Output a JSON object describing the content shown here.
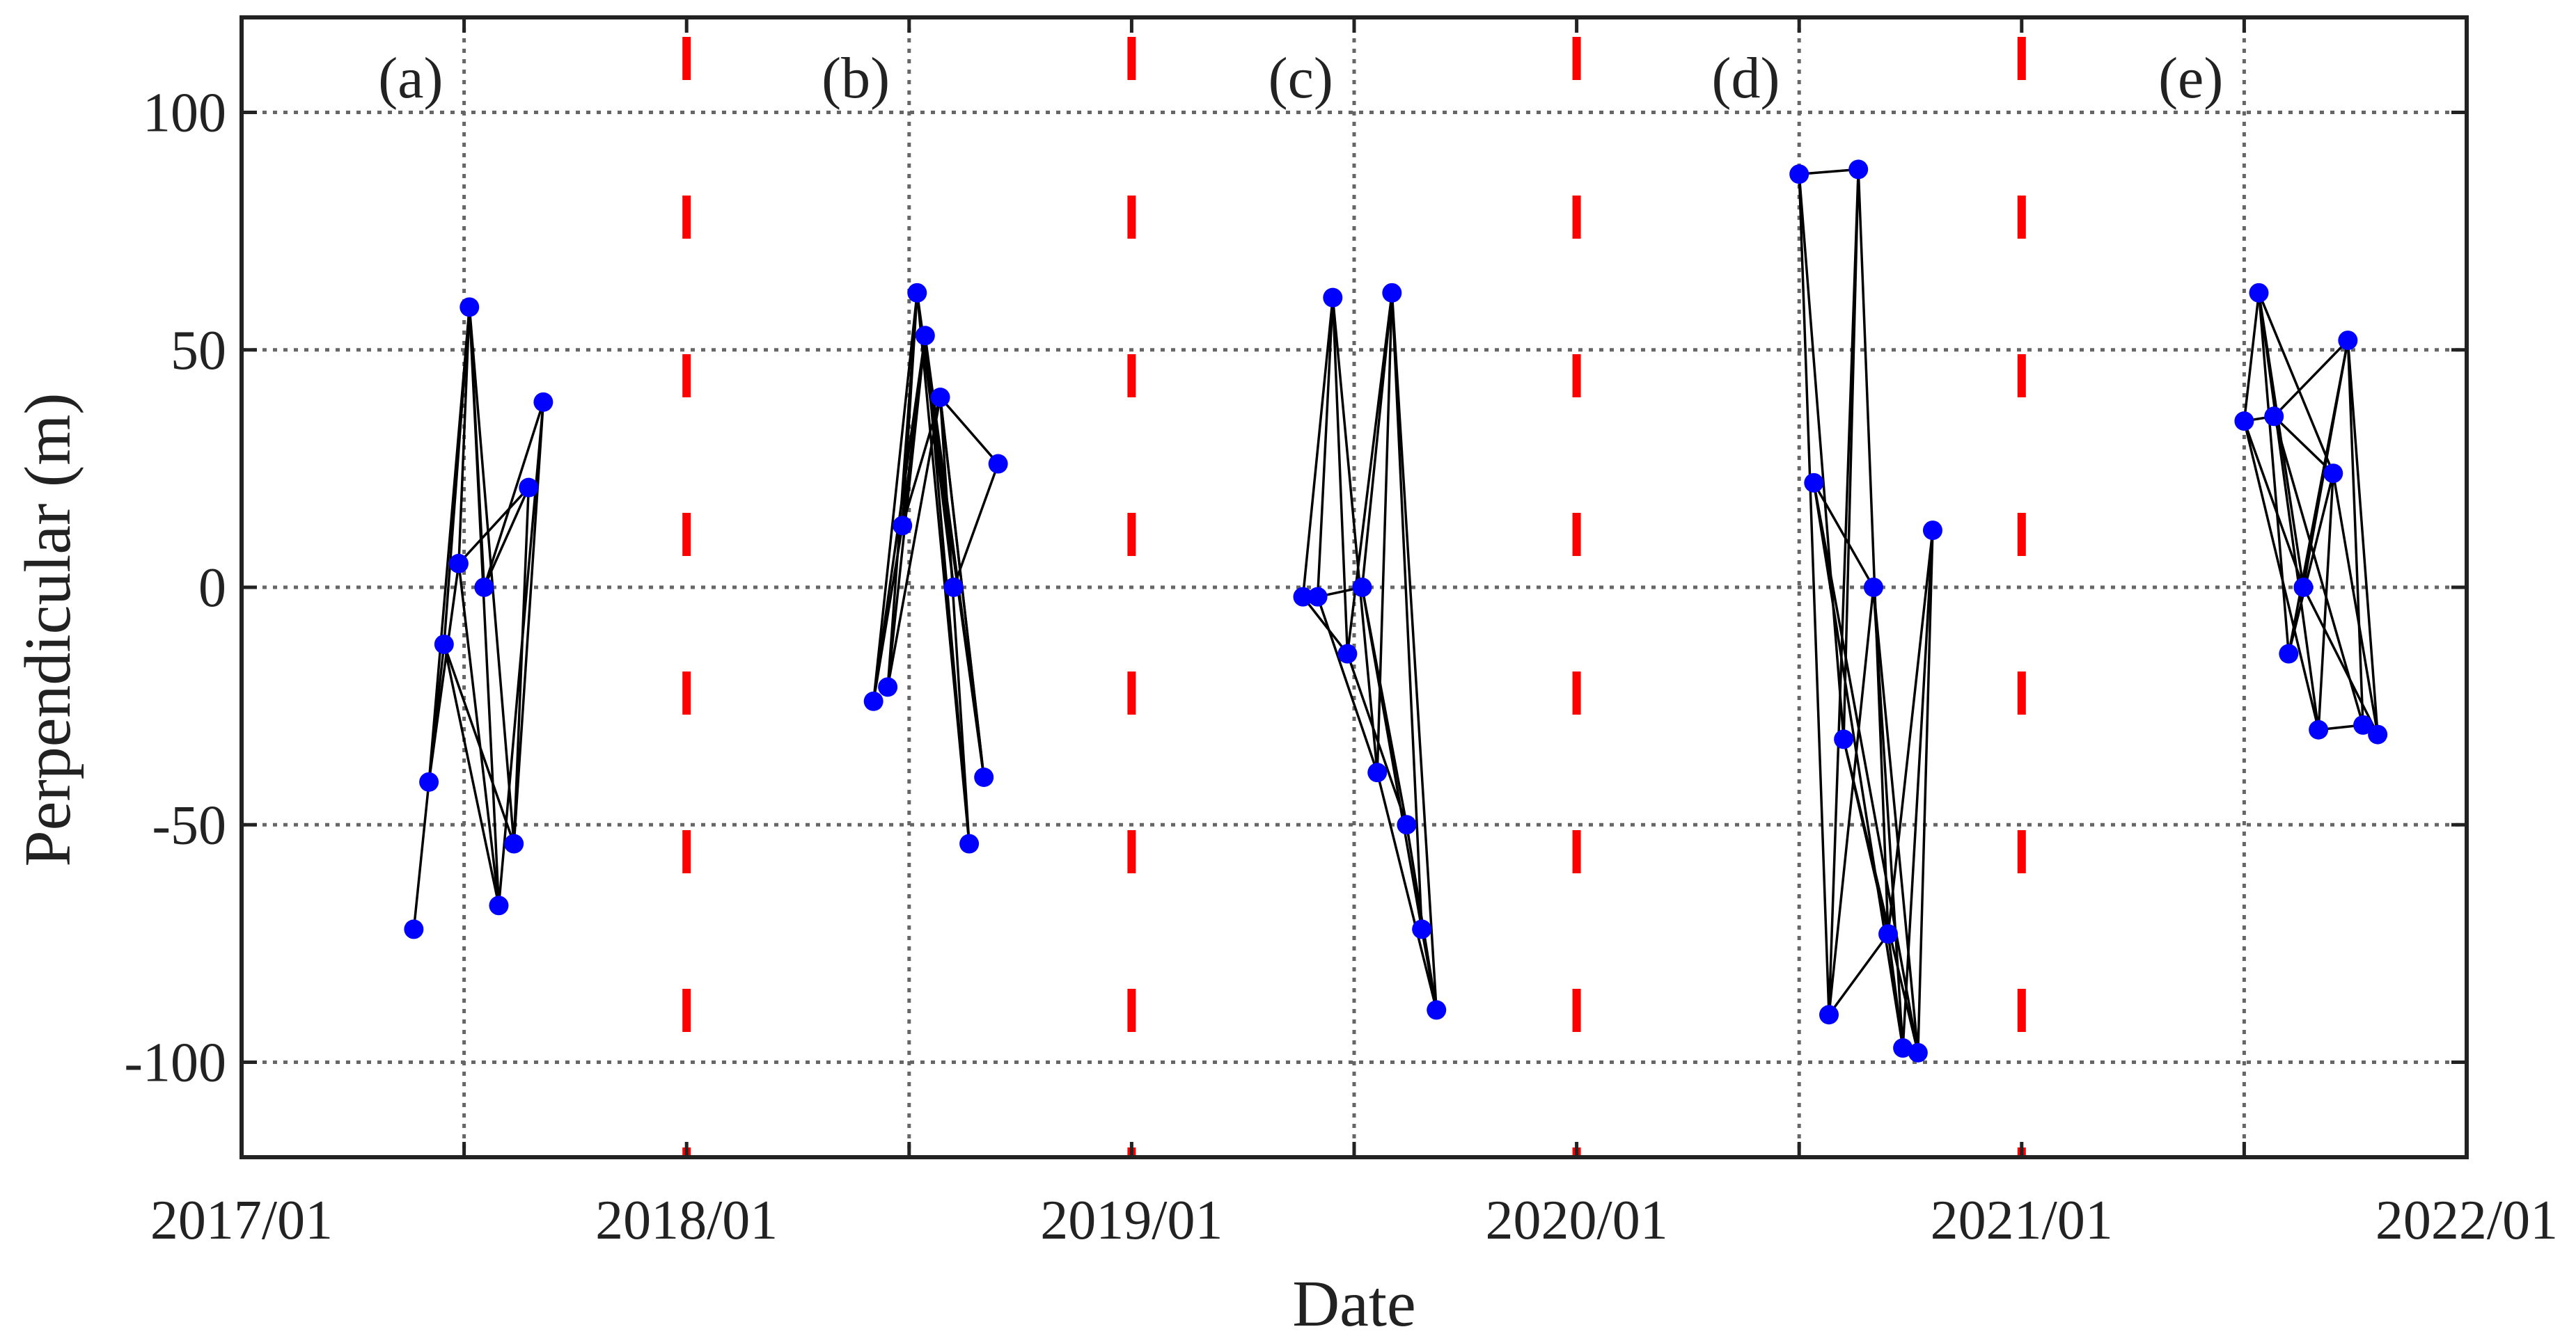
{
  "chart_data": {
    "type": "scatter",
    "title": "",
    "xlabel": "Date",
    "ylabel": "Perpendicular (m)",
    "xlim": [
      2017.0,
      2022.0
    ],
    "ylim": [
      -120,
      120
    ],
    "x_ticks": [
      {
        "value": 2017.0,
        "label": "2017/01"
      },
      {
        "value": 2018.0,
        "label": "2018/01"
      },
      {
        "value": 2019.0,
        "label": "2019/01"
      },
      {
        "value": 2020.0,
        "label": "2020/01"
      },
      {
        "value": 2021.0,
        "label": "2021/01"
      },
      {
        "value": 2022.0,
        "label": "2022/01"
      }
    ],
    "y_ticks": [
      {
        "value": 100,
        "label": "100"
      },
      {
        "value": 50,
        "label": "50"
      },
      {
        "value": 0,
        "label": "0"
      },
      {
        "value": -50,
        "label": "-50"
      },
      {
        "value": -100,
        "label": "-100"
      }
    ],
    "vertical_grid_x": [
      2017.5,
      2018.5,
      2019.5,
      2020.5,
      2021.5
    ],
    "separators_x": [
      2018.0,
      2019.0,
      2020.0,
      2021.0
    ],
    "grid": true,
    "colors": {
      "point": "#0000ff",
      "edge": "#000000",
      "separator": "#ff0000",
      "grid": "#666666",
      "axis": "#222222"
    },
    "panels": [
      {
        "label": "(a)",
        "label_x": 2017.38,
        "points": [
          {
            "x": 2017.387,
            "y": -72
          },
          {
            "x": 2017.421,
            "y": -41
          },
          {
            "x": 2017.455,
            "y": -12
          },
          {
            "x": 2017.488,
            "y": 5
          },
          {
            "x": 2017.512,
            "y": 59
          },
          {
            "x": 2017.545,
            "y": 0
          },
          {
            "x": 2017.578,
            "y": -67
          },
          {
            "x": 2017.612,
            "y": -54
          },
          {
            "x": 2017.645,
            "y": 21
          },
          {
            "x": 2017.678,
            "y": 39
          }
        ],
        "edges": [
          [
            0,
            1
          ],
          [
            1,
            2
          ],
          [
            1,
            3
          ],
          [
            1,
            4
          ],
          [
            2,
            4
          ],
          [
            2,
            6
          ],
          [
            2,
            7
          ],
          [
            3,
            4
          ],
          [
            3,
            6
          ],
          [
            3,
            8
          ],
          [
            4,
            5
          ],
          [
            4,
            6
          ],
          [
            4,
            7
          ],
          [
            5,
            8
          ],
          [
            5,
            9
          ],
          [
            6,
            9
          ],
          [
            7,
            9
          ],
          [
            7,
            8
          ]
        ]
      },
      {
        "label": "(b)",
        "label_x": 2018.38,
        "points": [
          {
            "x": 2018.42,
            "y": -24
          },
          {
            "x": 2018.452,
            "y": -21
          },
          {
            "x": 2018.485,
            "y": 13
          },
          {
            "x": 2018.518,
            "y": 62
          },
          {
            "x": 2018.536,
            "y": 53
          },
          {
            "x": 2018.57,
            "y": 40
          },
          {
            "x": 2018.6,
            "y": 0
          },
          {
            "x": 2018.635,
            "y": -54
          },
          {
            "x": 2018.668,
            "y": -40
          },
          {
            "x": 2018.7,
            "y": 26
          }
        ],
        "edges": [
          [
            0,
            3
          ],
          [
            0,
            4
          ],
          [
            0,
            2
          ],
          [
            1,
            3
          ],
          [
            1,
            4
          ],
          [
            1,
            5
          ],
          [
            2,
            3
          ],
          [
            2,
            4
          ],
          [
            2,
            5
          ],
          [
            3,
            6
          ],
          [
            3,
            7
          ],
          [
            3,
            8
          ],
          [
            4,
            6
          ],
          [
            4,
            7
          ],
          [
            4,
            8
          ],
          [
            5,
            9
          ],
          [
            5,
            8
          ],
          [
            6,
            9
          ],
          [
            7,
            5
          ],
          [
            8,
            5
          ]
        ]
      },
      {
        "label": "(c)",
        "label_x": 2019.38,
        "points": [
          {
            "x": 2019.385,
            "y": -2
          },
          {
            "x": 2019.418,
            "y": -2
          },
          {
            "x": 2019.452,
            "y": 61
          },
          {
            "x": 2019.485,
            "y": -14
          },
          {
            "x": 2019.518,
            "y": 0
          },
          {
            "x": 2019.552,
            "y": -39
          },
          {
            "x": 2019.585,
            "y": 62
          },
          {
            "x": 2019.618,
            "y": -50
          },
          {
            "x": 2019.652,
            "y": -72
          },
          {
            "x": 2019.685,
            "y": -89
          }
        ],
        "edges": [
          [
            0,
            2
          ],
          [
            0,
            3
          ],
          [
            1,
            2
          ],
          [
            1,
            4
          ],
          [
            1,
            5
          ],
          [
            2,
            3
          ],
          [
            2,
            5
          ],
          [
            3,
            6
          ],
          [
            3,
            7
          ],
          [
            4,
            6
          ],
          [
            4,
            7
          ],
          [
            4,
            8
          ],
          [
            5,
            6
          ],
          [
            5,
            9
          ],
          [
            6,
            8
          ],
          [
            6,
            9
          ],
          [
            7,
            9
          ],
          [
            8,
            9
          ]
        ]
      },
      {
        "label": "(d)",
        "label_x": 2020.38,
        "points": [
          {
            "x": 2020.5,
            "y": 87
          },
          {
            "x": 2020.533,
            "y": 22
          },
          {
            "x": 2020.567,
            "y": -90
          },
          {
            "x": 2020.6,
            "y": -32
          },
          {
            "x": 2020.633,
            "y": 88
          },
          {
            "x": 2020.667,
            "y": 0
          },
          {
            "x": 2020.7,
            "y": -73
          },
          {
            "x": 2020.733,
            "y": -97
          },
          {
            "x": 2020.767,
            "y": -98
          },
          {
            "x": 2020.8,
            "y": 12
          }
        ],
        "edges": [
          [
            0,
            4
          ],
          [
            0,
            3
          ],
          [
            0,
            2
          ],
          [
            1,
            5
          ],
          [
            1,
            7
          ],
          [
            1,
            8
          ],
          [
            2,
            4
          ],
          [
            2,
            5
          ],
          [
            3,
            4
          ],
          [
            3,
            6
          ],
          [
            3,
            8
          ],
          [
            4,
            6
          ],
          [
            5,
            7
          ],
          [
            5,
            8
          ],
          [
            6,
            9
          ],
          [
            6,
            7
          ],
          [
            7,
            9
          ],
          [
            8,
            9
          ],
          [
            2,
            6
          ]
        ]
      },
      {
        "label": "(e)",
        "label_x": 2021.38,
        "points": [
          {
            "x": 2021.5,
            "y": 35
          },
          {
            "x": 2021.533,
            "y": 62
          },
          {
            "x": 2021.567,
            "y": 36
          },
          {
            "x": 2021.6,
            "y": -14
          },
          {
            "x": 2021.633,
            "y": 0
          },
          {
            "x": 2021.667,
            "y": -30
          },
          {
            "x": 2021.7,
            "y": 24
          },
          {
            "x": 2021.733,
            "y": 52
          },
          {
            "x": 2021.767,
            "y": -29
          },
          {
            "x": 2021.8,
            "y": -31
          }
        ],
        "edges": [
          [
            0,
            1
          ],
          [
            0,
            2
          ],
          [
            0,
            4
          ],
          [
            0,
            5
          ],
          [
            1,
            3
          ],
          [
            1,
            4
          ],
          [
            1,
            6
          ],
          [
            2,
            6
          ],
          [
            2,
            7
          ],
          [
            2,
            8
          ],
          [
            3,
            7
          ],
          [
            3,
            6
          ],
          [
            4,
            7
          ],
          [
            4,
            9
          ],
          [
            5,
            6
          ],
          [
            5,
            8
          ],
          [
            6,
            9
          ],
          [
            7,
            8
          ],
          [
            7,
            9
          ],
          [
            1,
            5
          ]
        ]
      }
    ]
  }
}
